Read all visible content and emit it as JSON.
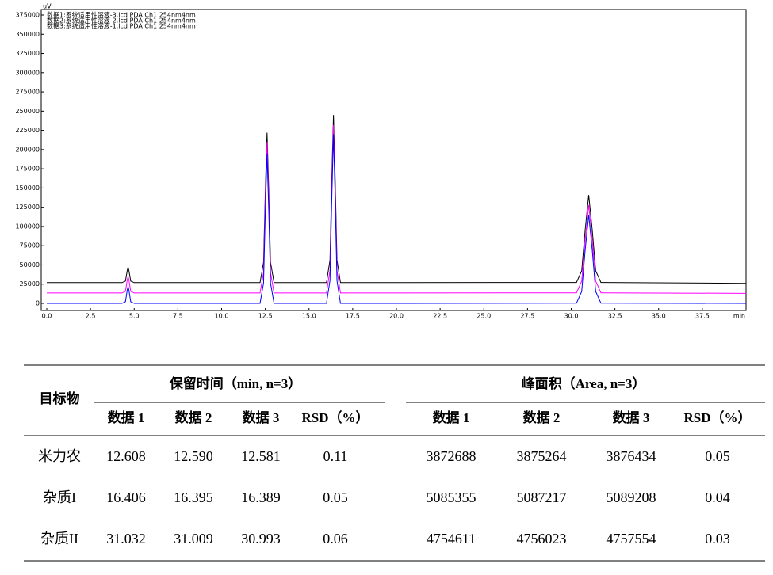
{
  "chart_data": {
    "type": "line",
    "y_unit": "uV",
    "x_unit": "min",
    "x": [
      0,
      4.3,
      4.5,
      4.6,
      4.65,
      4.7,
      4.8,
      5.0,
      12.2,
      12.4,
      12.5,
      12.6,
      12.7,
      12.8,
      13.0,
      16.0,
      16.2,
      16.3,
      16.4,
      16.5,
      16.6,
      16.8,
      30.3,
      30.6,
      30.8,
      31.0,
      31.2,
      31.4,
      31.7,
      40
    ],
    "series": [
      {
        "name": "数据1:系统适用性溶液-3.lcd PDA Ch1 254nm4nm",
        "color": "#000000",
        "values": [
          27000,
          27000,
          29000,
          42500,
          47000,
          42500,
          29000,
          27000,
          27000,
          53300,
          145400,
          222000,
          145400,
          53300,
          27000,
          27000,
          56400,
          159300,
          245000,
          159300,
          56400,
          27000,
          27200,
          42400,
          96200,
          141000,
          96200,
          42400,
          27200,
          26000
        ]
      },
      {
        "name": "数据2:系统适用性溶液-2.lcd PDA Ch1 254nm4nm",
        "color": "#ff00ff",
        "values": [
          13500,
          13500,
          15650,
          30160,
          35000,
          30160,
          15650,
          13500,
          13500,
          40030,
          132800,
          210000,
          132800,
          40030,
          13500,
          13500,
          43000,
          146100,
          232000,
          146100,
          43000,
          13500,
          13700,
          28960,
          83000,
          128000,
          83000,
          28960,
          13700,
          13000
        ]
      },
      {
        "name": "数据3:系统适用性溶液-1.lcd PDA Ch1 254nm4nm",
        "color": "#0000ff",
        "values": [
          0,
          0,
          2200,
          17050,
          22000,
          17050,
          2200,
          0,
          0,
          26330,
          118400,
          195000,
          118400,
          26330,
          0,
          0,
          29700,
          133500,
          220000,
          133500,
          29700,
          0,
          230,
          15520,
          69800,
          115000,
          69800,
          15520,
          230,
          0
        ]
      }
    ],
    "xlim": [
      0,
      40
    ],
    "ylim": [
      0,
      375000
    ],
    "xticks": [
      {
        "value": 0,
        "label": "0.0"
      },
      2.5,
      {
        "value": 5,
        "label": "5.0"
      },
      7.5,
      {
        "value": 10,
        "label": "10.0"
      },
      12.5,
      {
        "value": 15,
        "label": "15.0"
      },
      17.5,
      {
        "value": 20,
        "label": "20.0"
      },
      22.5,
      {
        "value": 25,
        "label": "25.0"
      },
      27.5,
      {
        "value": 30,
        "label": "30.0"
      },
      32.5,
      {
        "value": 35,
        "label": "35.0"
      },
      37.5
    ],
    "yticks": [
      0,
      25000,
      50000,
      75000,
      100000,
      125000,
      150000,
      175000,
      200000,
      225000,
      250000,
      275000,
      300000,
      325000,
      350000,
      375000
    ]
  },
  "table": {
    "row_header": "目标物",
    "groups": [
      "保留时间（min, n=3）",
      "峰面积（Area, n=3）"
    ],
    "subheaders": [
      "数据 1",
      "数据 2",
      "数据 3",
      "RSD（%）",
      "数据 1",
      "数据 2",
      "数据 3",
      "RSD（%）"
    ],
    "rows": [
      [
        "米力农",
        "12.608",
        "12.590",
        "12.581",
        "0.11",
        "3872688",
        "3875264",
        "3876434",
        "0.05"
      ],
      [
        "杂质I",
        "16.406",
        "16.395",
        "16.389",
        "0.05",
        "5085355",
        "5087217",
        "5089208",
        "0.04"
      ],
      [
        "杂质II",
        "31.032",
        "31.009",
        "30.993",
        "0.06",
        "4754611",
        "4756023",
        "4757554",
        "0.03"
      ]
    ]
  }
}
